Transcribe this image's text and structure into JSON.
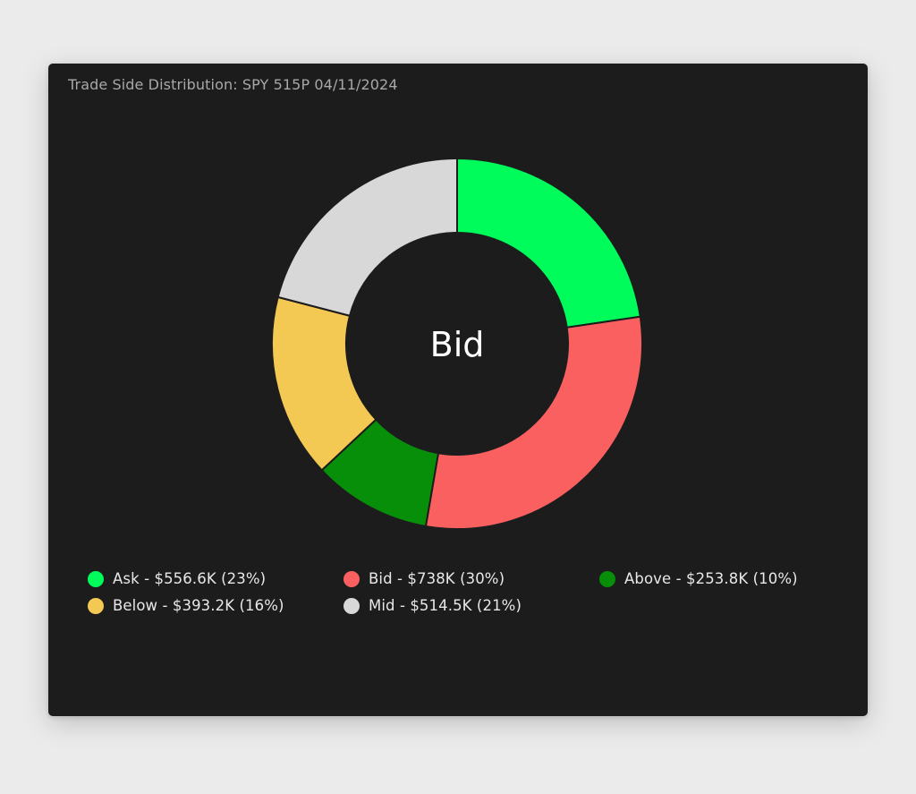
{
  "card": {
    "title": "Trade Side Distribution: SPY 515P 04/11/2024"
  },
  "chart_data": {
    "type": "pie",
    "style": "donut",
    "title": "Trade Side Distribution: SPY 515P 04/11/2024",
    "center_label": "Bid",
    "slices": [
      {
        "name": "Ask",
        "value": 556.6,
        "unit": "$K",
        "percent": 23,
        "color": "#00fc5a",
        "label": "Ask - $556.6K (23%)"
      },
      {
        "name": "Bid",
        "value": 738,
        "unit": "$K",
        "percent": 30,
        "color": "#fb6060",
        "label": "Bid - $738K (30%)"
      },
      {
        "name": "Above",
        "value": 253.8,
        "unit": "$K",
        "percent": 10,
        "color": "#078f0a",
        "label": "Above - $253.8K (10%)"
      },
      {
        "name": "Below",
        "value": 393.2,
        "unit": "$K",
        "percent": 16,
        "color": "#f3c853",
        "label": "Below - $393.2K (16%)"
      },
      {
        "name": "Mid",
        "value": 514.5,
        "unit": "$K",
        "percent": 21,
        "color": "#d8d8d8",
        "label": "Mid - $514.5K (21%)"
      }
    ],
    "start_angle": "top",
    "direction": "clockwise",
    "legend_position": "bottom"
  }
}
